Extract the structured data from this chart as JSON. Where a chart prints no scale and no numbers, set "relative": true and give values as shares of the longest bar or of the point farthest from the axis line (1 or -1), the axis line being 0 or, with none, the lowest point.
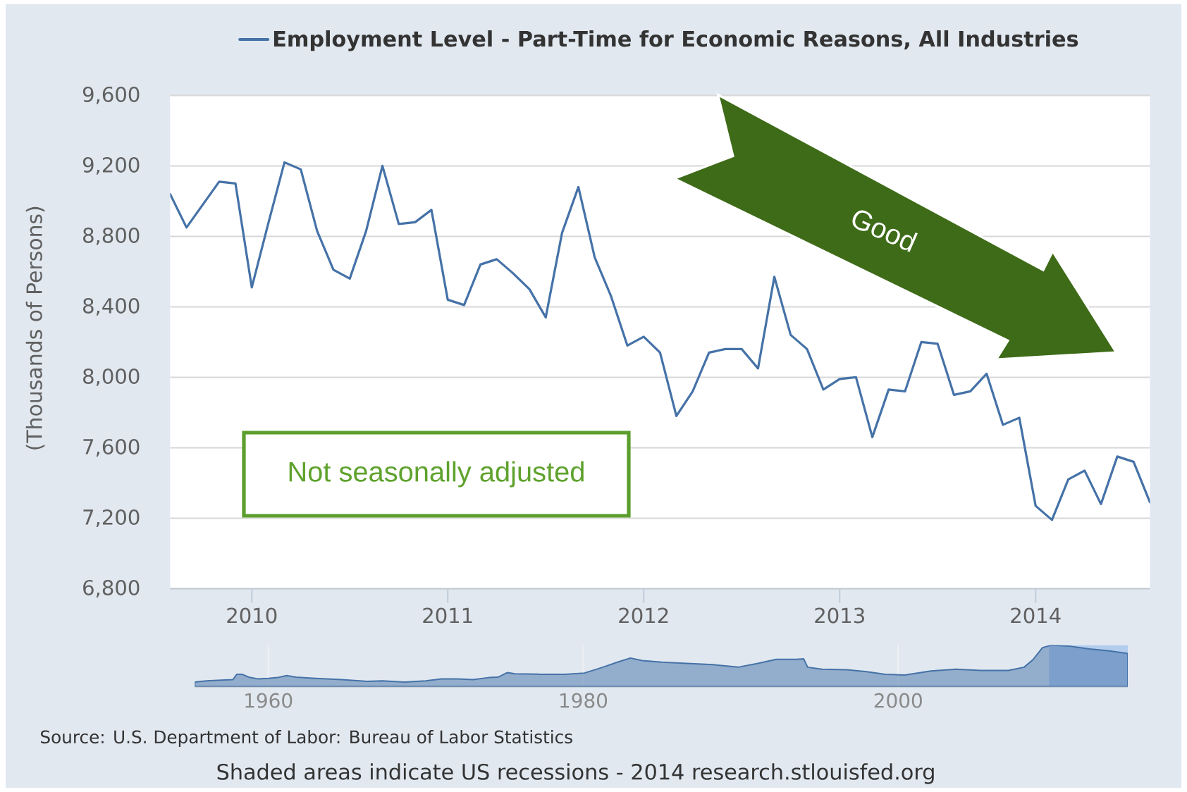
{
  "chart_data": [
    {
      "type": "line",
      "x": [
        "2009-08",
        "2009-09",
        "2009-10",
        "2009-11",
        "2009-12",
        "2010-01",
        "2010-02",
        "2010-03",
        "2010-04",
        "2010-05",
        "2010-06",
        "2010-07",
        "2010-08",
        "2010-09",
        "2010-10",
        "2010-11",
        "2010-12",
        "2011-01",
        "2011-02",
        "2011-03",
        "2011-04",
        "2011-05",
        "2011-06",
        "2011-07",
        "2011-08",
        "2011-09",
        "2011-10",
        "2011-11",
        "2011-12",
        "2012-01",
        "2012-02",
        "2012-03",
        "2012-04",
        "2012-05",
        "2012-06",
        "2012-07",
        "2012-08",
        "2012-09",
        "2012-10",
        "2012-11",
        "2012-12",
        "2013-01",
        "2013-02",
        "2013-03",
        "2013-04",
        "2013-05",
        "2013-06",
        "2013-07",
        "2013-08",
        "2013-09",
        "2013-10",
        "2013-11",
        "2013-12",
        "2014-01",
        "2014-02",
        "2014-03",
        "2014-04",
        "2014-05",
        "2014-06",
        "2014-07",
        "2014-08"
      ],
      "series": [
        {
          "name": "Employment Level - Part-Time for Economic Reasons, All Industries",
          "color": "#4572a7",
          "values": [
            9040,
            8850,
            8980,
            9110,
            9100,
            8510,
            8870,
            9220,
            9180,
            8830,
            8610,
            8560,
            8830,
            9200,
            8870,
            8880,
            8950,
            8440,
            8410,
            8640,
            8670,
            8590,
            8500,
            8340,
            8820,
            9080,
            8680,
            8460,
            8180,
            8230,
            8140,
            7780,
            7920,
            8140,
            8160,
            8160,
            8050,
            8570,
            8240,
            8160,
            7930,
            7990,
            8000,
            7660,
            7930,
            7920,
            8200,
            8190,
            7900,
            7920,
            8020,
            7730,
            7770,
            7270,
            7190,
            7420,
            7470,
            7280,
            7550,
            7520,
            7290
          ]
        }
      ],
      "xlim": [
        "2009-08",
        "2014-08"
      ],
      "xticks": [
        "2010",
        "2011",
        "2012",
        "2013",
        "2014"
      ],
      "ylim": [
        6800,
        9600
      ],
      "yticks": [
        {
          "value": 6800,
          "label": "6,800"
        },
        {
          "value": 7200,
          "label": "7,200"
        },
        {
          "value": 7600,
          "label": "7,600"
        },
        {
          "value": 8000,
          "label": "8,000"
        },
        {
          "value": 8400,
          "label": "8,400"
        },
        {
          "value": 8800,
          "label": "8,800"
        },
        {
          "value": 9200,
          "label": "9,200"
        },
        {
          "value": 9600,
          "label": "9,600"
        }
      ],
      "ylabel": "(Thousands of Persons)",
      "grid": "y",
      "legend": "top",
      "annotations": [
        "Not seasonally adjusted",
        "Good",
        "Source: U.S. Department of Labor: Bureau of Labor Statistics",
        "Shaded areas indicate US recessions - 2014 research.stlouisfed.org"
      ]
    },
    {
      "type": "area",
      "relative": true,
      "x": [
        "1955-05",
        "1956-02",
        "1957-01",
        "1957-10",
        "1958-01",
        "1958-05",
        "1958-10",
        "1959-05",
        "1960-01",
        "1960-08",
        "1961-03",
        "1961-10",
        "1963-01",
        "1964-09",
        "1966-04",
        "1967-04",
        "1968-09",
        "1970-01",
        "1971-01",
        "1972-01",
        "1973-01",
        "1974-01",
        "1974-08",
        "1975-03",
        "1975-09",
        "1977-04",
        "1978-11",
        "1980-02",
        "1981-04",
        "1982-03",
        "1983-01",
        "1983-10",
        "1985-01",
        "1986-08",
        "1988-04",
        "1989-11",
        "1991-02",
        "1992-04",
        "1993-07",
        "1994-01",
        "1994-04",
        "1995-03",
        "1996-10",
        "1998-01",
        "1999-03",
        "2000-06",
        "2002-02",
        "2003-09",
        "2005-04",
        "2007-01",
        "2008-01",
        "2008-08",
        "2009-03",
        "2009-10",
        "2011-01",
        "2012-03",
        "2013-06",
        "2014-08"
      ],
      "series": [
        {
          "color": "#4572a7",
          "values": [
            0.11,
            0.14,
            0.16,
            0.17,
            0.3,
            0.3,
            0.23,
            0.19,
            0.2,
            0.22,
            0.27,
            0.23,
            0.2,
            0.17,
            0.13,
            0.14,
            0.11,
            0.14,
            0.19,
            0.19,
            0.17,
            0.22,
            0.23,
            0.34,
            0.31,
            0.3,
            0.3,
            0.33,
            0.47,
            0.59,
            0.69,
            0.63,
            0.59,
            0.56,
            0.53,
            0.47,
            0.56,
            0.66,
            0.66,
            0.67,
            0.47,
            0.42,
            0.41,
            0.36,
            0.3,
            0.28,
            0.38,
            0.42,
            0.39,
            0.39,
            0.47,
            0.66,
            0.94,
            1.0,
            0.97,
            0.91,
            0.86,
            0.8
          ]
        }
      ],
      "xlim": [
        "1955-05",
        "2014-08"
      ],
      "xticks": [
        "1960",
        "1980",
        "2000"
      ],
      "grid": "x",
      "bands": [
        {
          "axis": "x",
          "from": "2009-08",
          "to": "2014-08",
          "color": "#b3cdee"
        }
      ]
    }
  ]
}
